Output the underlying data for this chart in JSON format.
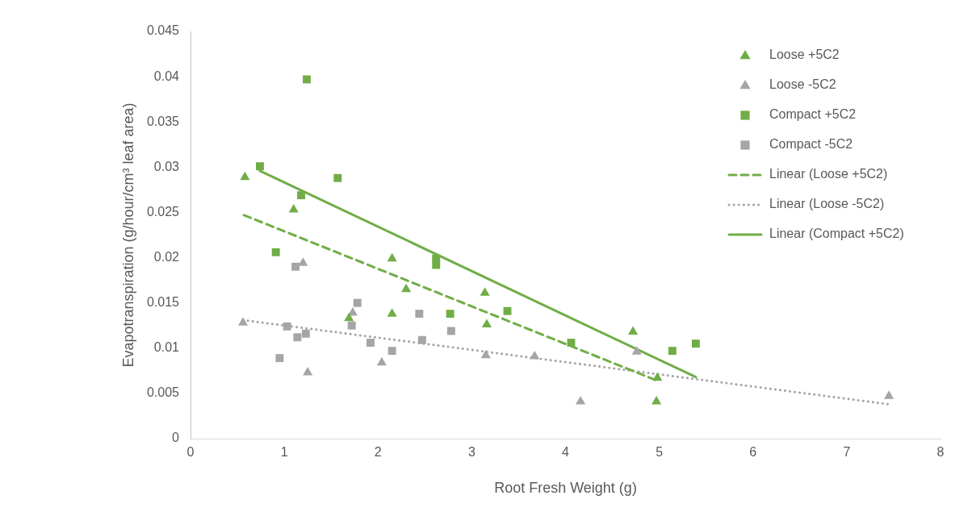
{
  "chart_data": {
    "type": "scatter",
    "xlabel": "Root Fresh Weight (g)",
    "ylabel": "Evapotranspiration (g/hour/cm³ leaf area)",
    "xlim": [
      0,
      8
    ],
    "xticks": [
      0,
      1,
      2,
      3,
      4,
      5,
      6,
      7,
      8
    ],
    "ylim": [
      0,
      0.045
    ],
    "yticks": [
      0,
      0.005,
      0.01,
      0.015,
      0.02,
      0.025,
      0.03,
      0.035,
      0.04,
      0.045
    ],
    "grid": false,
    "legend": "top right",
    "series": [
      {
        "name": "Loose +5C2",
        "marker": "triangle",
        "color": "#70ad47",
        "x": [
          0.58,
          1.1,
          2.15,
          2.3,
          2.15,
          1.69,
          3.14,
          3.16,
          4.72,
          4.98,
          4.97
        ],
        "values": [
          0.0289,
          0.0253,
          0.0199,
          0.0165,
          0.0138,
          0.0133,
          0.0161,
          0.0126,
          0.0118,
          0.0067,
          0.0041
        ]
      },
      {
        "name": "Loose -5C2",
        "marker": "triangle",
        "color": "#a5a5a5",
        "x": [
          0.56,
          1.2,
          1.73,
          1.25,
          2.04,
          3.15,
          3.67,
          4.16,
          4.76,
          7.45
        ],
        "values": [
          0.0128,
          0.0194,
          0.0139,
          0.0073,
          0.0084,
          0.0092,
          0.0091,
          0.0041,
          0.0096,
          0.0047
        ]
      },
      {
        "name": "Compact +5C2",
        "marker": "square",
        "color": "#70ad47",
        "x": [
          1.24,
          0.74,
          1.57,
          1.18,
          0.91,
          2.62,
          2.62,
          2.77,
          3.38,
          4.06,
          5.14,
          5.39
        ],
        "values": [
          0.0397,
          0.0301,
          0.0288,
          0.0269,
          0.0206,
          0.0199,
          0.0192,
          0.0138,
          0.0141,
          0.0106,
          0.0097,
          0.0105
        ]
      },
      {
        "name": "Compact -5C2",
        "marker": "square",
        "color": "#a5a5a5",
        "x": [
          1.12,
          1.78,
          2.44,
          1.03,
          1.14,
          1.23,
          1.72,
          1.92,
          2.47,
          2.15,
          0.95,
          2.78
        ],
        "values": [
          0.019,
          0.015,
          0.0138,
          0.0124,
          0.0112,
          0.0116,
          0.0125,
          0.0106,
          0.0109,
          0.0097,
          0.0089,
          0.0119
        ]
      },
      {
        "name": "Linear (Loose +5C2)",
        "type": "line",
        "marker": "none",
        "line_style": "dashed",
        "color": "#70ad47",
        "x": [
          0.57,
          4.98
        ],
        "values": [
          0.0247,
          0.0064
        ]
      },
      {
        "name": "Linear (Loose -5C2)",
        "type": "line",
        "marker": "none",
        "line_style": "dotted",
        "color": "#a5a5a5",
        "x": [
          0.56,
          7.45
        ],
        "values": [
          0.0131,
          0.0038
        ]
      },
      {
        "name": "Linear (Compact +5C2)",
        "type": "line",
        "marker": "none",
        "line_style": "solid",
        "color": "#70ad47",
        "x": [
          0.74,
          5.39
        ],
        "values": [
          0.0296,
          0.0068
        ]
      }
    ]
  }
}
